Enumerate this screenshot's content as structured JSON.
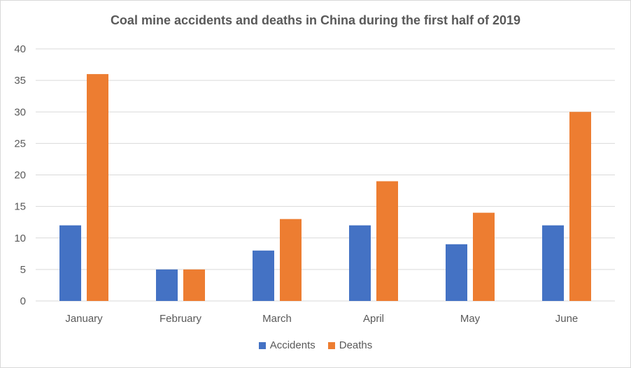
{
  "chart_data": {
    "type": "bar",
    "title": "Coal mine accidents and deaths in China during the first half of 2019",
    "categories": [
      "January",
      "February",
      "March",
      "April",
      "May",
      "June"
    ],
    "series": [
      {
        "name": "Accidents",
        "values": [
          12,
          5,
          8,
          12,
          9,
          12
        ],
        "color": "#4472C4"
      },
      {
        "name": "Deaths",
        "values": [
          36,
          5,
          13,
          19,
          14,
          30
        ],
        "color": "#ED7D31"
      }
    ],
    "xlabel": "",
    "ylabel": "",
    "ylim": [
      0,
      40
    ],
    "yticks": [
      0,
      5,
      10,
      15,
      20,
      25,
      30,
      35,
      40
    ],
    "grid": true,
    "legend_position": "bottom"
  }
}
